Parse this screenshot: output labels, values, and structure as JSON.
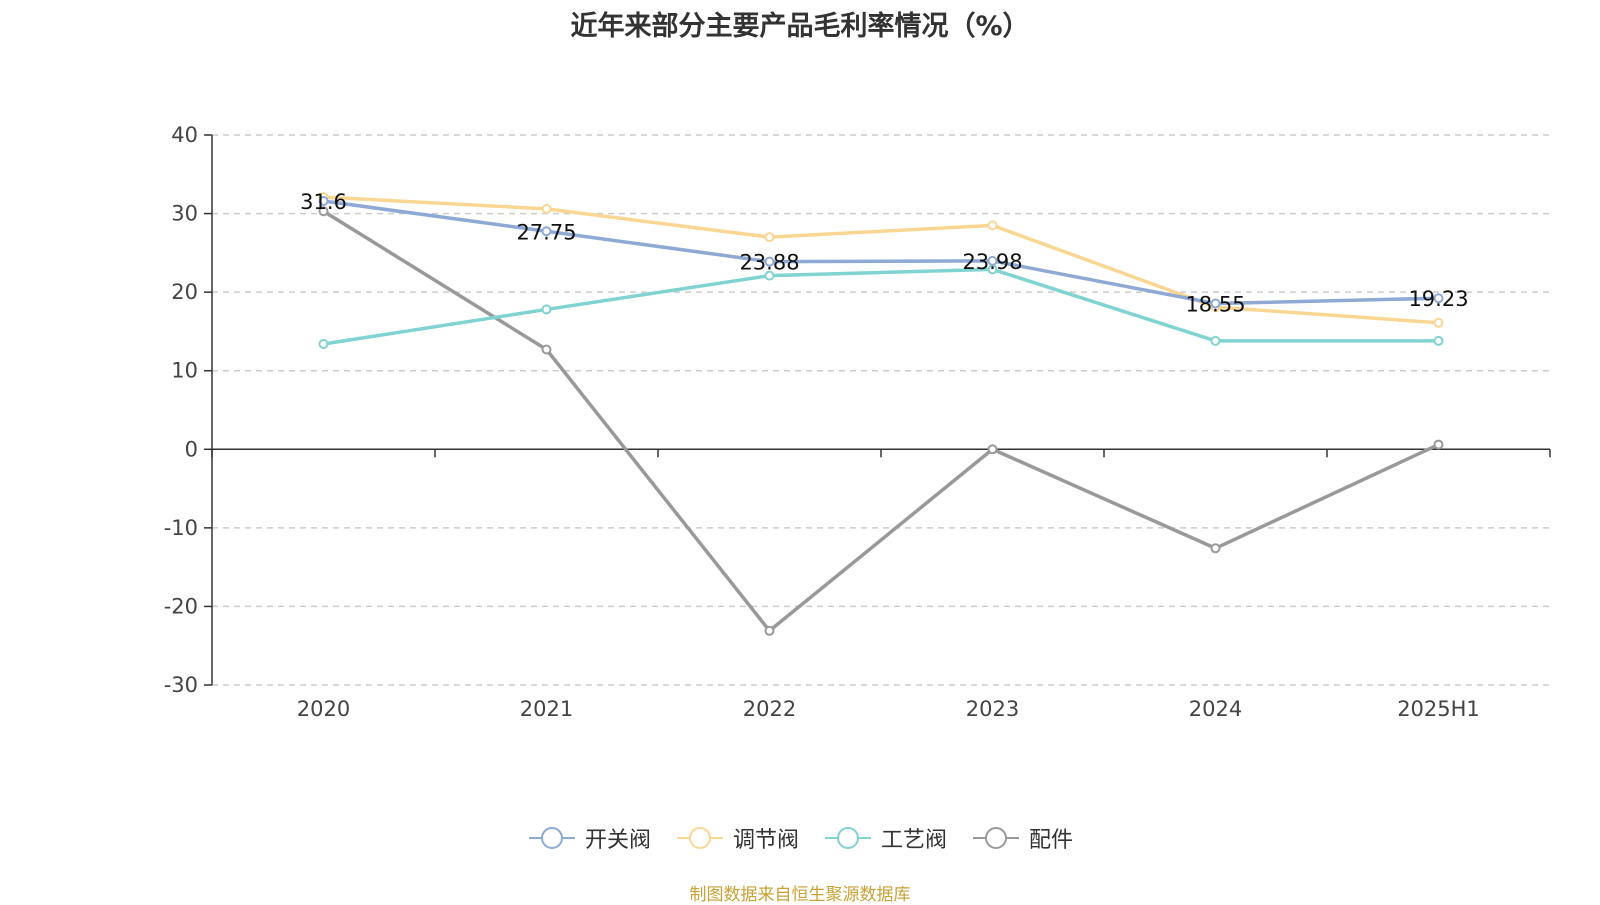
{
  "title": "近年来部分主要产品毛利率情况（%）",
  "source": "制图数据来自恒生聚源数据库",
  "chart_data": {
    "type": "line",
    "categories": [
      "2020",
      "2021",
      "2022",
      "2023",
      "2024",
      "2025H1"
    ],
    "ylim": [
      -30,
      40
    ],
    "yticks": [
      40,
      30,
      20,
      10,
      0,
      -10,
      -20,
      -30
    ],
    "grid": true,
    "legend_position": "bottom",
    "series": [
      {
        "name": "开关阀",
        "color": "#8da9d4",
        "values": [
          31.6,
          27.75,
          23.88,
          23.98,
          18.55,
          19.23
        ],
        "labels": [
          "31.6",
          "27.75",
          "23.88",
          "23.98",
          "18.55",
          "19.23"
        ]
      },
      {
        "name": "调节阀",
        "color": "#f9d793",
        "values": [
          32.1,
          30.6,
          27.0,
          28.5,
          18.1,
          16.1
        ]
      },
      {
        "name": "工艺阀",
        "color": "#7fd3d0",
        "values": [
          13.4,
          17.8,
          22.1,
          22.9,
          13.8,
          13.8
        ]
      },
      {
        "name": "配件",
        "color": "#999999",
        "values": [
          30.3,
          12.7,
          -23.1,
          0.0,
          -12.6,
          0.6
        ]
      }
    ]
  }
}
